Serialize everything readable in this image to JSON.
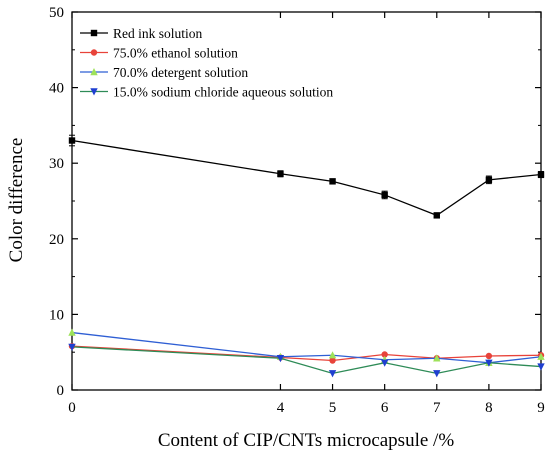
{
  "chart_data": {
    "type": "line",
    "title": "",
    "xlabel": "Content of CIP/CNTs  microcapsule /%",
    "ylabel": "Color difference",
    "xlim": [
      0,
      9
    ],
    "ylim": [
      0,
      50
    ],
    "x_ticks": [
      0,
      4,
      5,
      6,
      7,
      8,
      9
    ],
    "y_ticks": [
      0,
      10,
      20,
      30,
      40,
      50
    ],
    "legend_position": "top-left",
    "grid": false,
    "series": [
      {
        "name": "Red ink solution",
        "color": "#000000",
        "marker": "square",
        "error_bars": true,
        "x": [
          0,
          4,
          5,
          6,
          7,
          8,
          9
        ],
        "values": [
          33.0,
          28.6,
          27.6,
          25.8,
          23.1,
          27.8,
          28.5
        ],
        "errors": [
          0.7,
          0.4,
          0.3,
          0.5,
          0.3,
          0.5,
          0.4
        ]
      },
      {
        "name": "75.0% ethanol solution",
        "color": "#e8433a",
        "marker": "circle",
        "error_bars": false,
        "x": [
          0,
          4,
          5,
          6,
          7,
          8,
          9
        ],
        "values": [
          5.8,
          4.3,
          3.9,
          4.7,
          4.2,
          4.5,
          4.6
        ]
      },
      {
        "name": "70.0% detergent solution",
        "color": "#2f5fd4",
        "marker": "triangle-up",
        "error_bars": false,
        "x": [
          0,
          4,
          5,
          6,
          7,
          8,
          9
        ],
        "values": [
          7.6,
          4.4,
          4.6,
          4.0,
          4.2,
          3.6,
          4.4
        ]
      },
      {
        "name": "15.0% sodium chloride aqueous solution",
        "color": "#2e8b57",
        "marker": "triangle-down",
        "error_bars": false,
        "x": [
          0,
          4,
          5,
          6,
          7,
          8,
          9
        ],
        "values": [
          5.7,
          4.2,
          2.2,
          3.6,
          2.2,
          3.6,
          3.1
        ]
      }
    ],
    "marker_colors": {
      "75.0% ethanol solution": "#e8433a",
      "70.0% detergent solution": "#9ee25a",
      "15.0% sodium chloride aqueous solution": "#1f3fd0"
    }
  }
}
